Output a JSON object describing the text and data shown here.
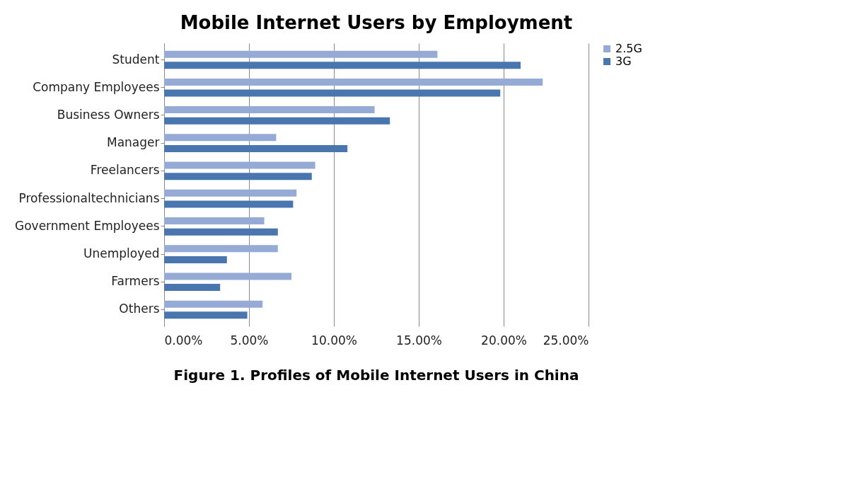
{
  "chart_data": {
    "type": "bar",
    "orientation": "horizontal",
    "title": "Mobile Internet Users by Employment",
    "categories": [
      "Student",
      "Company Employees",
      "Business Owners",
      "Manager",
      "Freelancers",
      "Professionaltechnicians",
      "Government Employees",
      "Unemployed",
      "Farmers",
      "Others"
    ],
    "series": [
      {
        "name": "2.5G",
        "color": "#95abd5",
        "values": [
          16.1,
          22.3,
          12.4,
          6.6,
          8.9,
          7.8,
          5.9,
          6.7,
          7.5,
          5.8
        ]
      },
      {
        "name": "3G",
        "color": "#4a76b0",
        "values": [
          21.0,
          19.8,
          13.3,
          10.8,
          8.7,
          7.6,
          6.7,
          3.7,
          3.3,
          4.9
        ]
      }
    ],
    "xlim": [
      0,
      25
    ],
    "xticks": [
      {
        "value": 0,
        "label": "0.00%"
      },
      {
        "value": 5,
        "label": "5.00%"
      },
      {
        "value": 10,
        "label": "10.00%"
      },
      {
        "value": 15,
        "label": "15.00%"
      },
      {
        "value": 20,
        "label": "20.00%"
      },
      {
        "value": 25,
        "label": "25.00%"
      }
    ],
    "grid": "x",
    "legend": "right",
    "annotations": [
      "Figure 1. Profiles of Mobile Internet Users in China"
    ]
  }
}
